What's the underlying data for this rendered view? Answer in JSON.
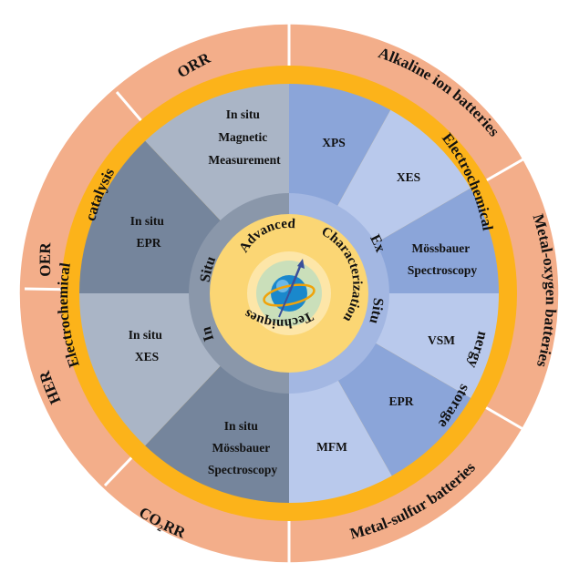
{
  "colors": {
    "outer_ring": "#f3ae8a",
    "yellow_band": "#fcb31a",
    "left_slice_dark": "#75859c",
    "left_slice_light": "#aab5c6",
    "left_inner_ring": "#8a97aa",
    "right_slice_dark": "#8ba5d9",
    "right_slice_light": "#b9c9ec",
    "right_inner_ring": "#a3b7e2",
    "core_yellow": "#fbd674",
    "core_light": "#fde6a8",
    "sphere": "#1a88cc",
    "orbit": "#f0a30a"
  },
  "outer_ring": {
    "orr": "ORR",
    "oer": "OER",
    "her": "HER",
    "co2rr": "CO₂RR",
    "alkaline": "Alkaline ion batteries",
    "metal_oxygen": "Metal-oxygen batteries",
    "metal_sulfur": "Metal-sulfur batteries"
  },
  "band": {
    "catalysis": "catalysis",
    "electrochemical_left": "Electrochemical",
    "electrochemical_right": "Electrochemical",
    "energy": "energy",
    "storage": "storage"
  },
  "in_situ_techniques": {
    "magnetic": [
      "In situ",
      "Magnetic",
      "Measurement"
    ],
    "epr": [
      "In situ",
      "EPR"
    ],
    "xes": [
      "In situ",
      "XES"
    ],
    "mossbauer": [
      "In situ",
      "Mössbauer",
      "Spectroscopy"
    ]
  },
  "ex_situ_techniques": {
    "xps": "XPS",
    "xes": "XES",
    "mossbauer": [
      "Mössbauer",
      "Spectroscopy"
    ],
    "vsm": "VSM",
    "epr": "EPR",
    "mfm": "MFM"
  },
  "inner_ring": {
    "in": "In",
    "situ_left": "Situ",
    "ex": "Ex",
    "situ_right": "Situ"
  },
  "core": {
    "advanced": "Advanced",
    "characterization": "Characterization",
    "techniques": "Techniques"
  }
}
